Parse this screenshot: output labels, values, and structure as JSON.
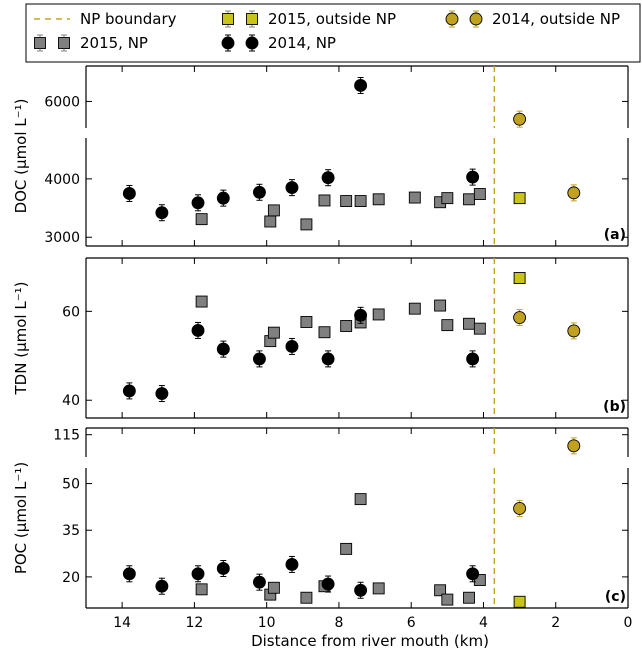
{
  "legend": {
    "items": [
      {
        "label": "NP boundary",
        "kind": "dash",
        "color": "#c8a32a"
      },
      {
        "label": "2015, outside NP",
        "kind": "square-pair",
        "color": "#c9c41a"
      },
      {
        "label": "2014, outside NP",
        "kind": "circle-pair",
        "color": "#c1a120"
      },
      {
        "label": "2015, NP",
        "kind": "square-pair",
        "color": "#808080"
      },
      {
        "label": "2014, NP",
        "kind": "circle-pair",
        "color": "#000000"
      }
    ]
  },
  "chart_data": [
    {
      "type": "scatter",
      "panel_label": "(a)",
      "ylabel": "DOC (μmol L⁻¹)",
      "broken_axis": true,
      "segments": [
        {
          "ylim": [
            5700,
            6400
          ],
          "yticks": [
            6000
          ]
        },
        {
          "ylim": [
            2850,
            4700
          ],
          "yticks": [
            3000,
            4000
          ]
        }
      ],
      "boundary_x": 3.7,
      "series": [
        {
          "name": "2015, NP",
          "marker": "square",
          "color": "#808080",
          "x": [
            11.8,
            9.9,
            9.8,
            8.9,
            8.4,
            7.8,
            7.4,
            6.9,
            5.9,
            5.2,
            5.0,
            4.4,
            4.1
          ],
          "y": [
            3310,
            3270,
            3460,
            3220,
            3630,
            3620,
            3620,
            3650,
            3680,
            3600,
            3670,
            3650,
            3740
          ]
        },
        {
          "name": "2014, NP",
          "marker": "circle",
          "color": "#000000",
          "x": [
            13.8,
            12.9,
            11.9,
            11.2,
            10.2,
            9.3,
            8.3,
            7.4,
            4.3
          ],
          "y": [
            3750,
            3420,
            3590,
            3670,
            3770,
            3850,
            4020,
            6180,
            4030
          ]
        },
        {
          "name": "2015, outside NP",
          "marker": "square",
          "color": "#c9c41a",
          "x": [
            3.0
          ],
          "y": [
            3670
          ]
        },
        {
          "name": "2014, outside NP",
          "marker": "circle",
          "color": "#c1a120",
          "x": [
            3.0,
            1.5
          ],
          "y": [
            5800,
            3760
          ]
        }
      ]
    },
    {
      "type": "scatter",
      "panel_label": "(b)",
      "ylabel": "TDN (μmol L⁻¹)",
      "broken_axis": false,
      "segments": [
        {
          "ylim": [
            36,
            72
          ],
          "yticks": [
            40,
            60
          ]
        }
      ],
      "boundary_x": 3.7,
      "series": [
        {
          "name": "2015, NP",
          "marker": "square",
          "color": "#808080",
          "x": [
            11.8,
            9.9,
            9.8,
            8.9,
            8.4,
            7.8,
            7.4,
            6.9,
            5.9,
            5.2,
            5.0,
            4.4,
            4.1
          ],
          "y": [
            62.2,
            53.3,
            55.2,
            57.6,
            55.3,
            56.7,
            57.5,
            59.3,
            60.6,
            61.3,
            56.9,
            57.2,
            56.1
          ]
        },
        {
          "name": "2014, NP",
          "marker": "circle",
          "color": "#000000",
          "x": [
            13.8,
            12.9,
            11.9,
            11.2,
            10.2,
            9.3,
            8.3,
            7.4,
            4.3
          ],
          "y": [
            42.1,
            41.5,
            55.7,
            51.5,
            49.3,
            52.1,
            49.3,
            59.1,
            49.3
          ]
        },
        {
          "name": "2015, outside NP",
          "marker": "square",
          "color": "#c9c41a",
          "x": [
            3.0
          ],
          "y": [
            67.5
          ]
        },
        {
          "name": "2014, outside NP",
          "marker": "circle",
          "color": "#c1a120",
          "x": [
            3.0,
            1.5
          ],
          "y": [
            58.6,
            55.6
          ]
        }
      ]
    },
    {
      "type": "scatter",
      "panel_label": "(c)",
      "ylabel": "POC (μmol L⁻¹)",
      "broken_axis": true,
      "segments": [
        {
          "ylim": [
            105,
            118
          ],
          "yticks": [
            115
          ]
        },
        {
          "ylim": [
            10,
            55
          ],
          "yticks": [
            20,
            35,
            50
          ]
        }
      ],
      "boundary_x": 3.7,
      "series": [
        {
          "name": "2015, NP",
          "marker": "square",
          "color": "#808080",
          "x": [
            11.8,
            9.9,
            9.8,
            8.9,
            8.4,
            7.8,
            7.4,
            6.9,
            5.2,
            5.0,
            4.4,
            4.1
          ],
          "y": [
            16.0,
            14.3,
            16.5,
            13.3,
            17.0,
            29.0,
            45.0,
            16.3,
            15.7,
            12.7,
            13.3,
            19.0
          ]
        },
        {
          "name": "2014, NP",
          "marker": "circle",
          "color": "#000000",
          "x": [
            13.8,
            12.9,
            11.9,
            11.2,
            10.2,
            9.3,
            8.3,
            7.4,
            4.3
          ],
          "y": [
            21.0,
            17.0,
            21.0,
            22.7,
            18.3,
            24.0,
            17.7,
            15.7,
            21.0
          ]
        },
        {
          "name": "2015, outside NP",
          "marker": "square",
          "color": "#c9c41a",
          "x": [
            3.0
          ],
          "y": [
            12.0
          ]
        },
        {
          "name": "2014, outside NP",
          "marker": "circle",
          "color": "#c1a120",
          "x": [
            3.0,
            1.5
          ],
          "y": [
            42.0,
            110.0
          ]
        }
      ]
    }
  ],
  "x_axis": {
    "label": "Distance from river mouth (km)",
    "xlim": [
      15,
      0
    ],
    "ticks": [
      14,
      12,
      10,
      8,
      6,
      4,
      2,
      0
    ],
    "reversed": true
  }
}
